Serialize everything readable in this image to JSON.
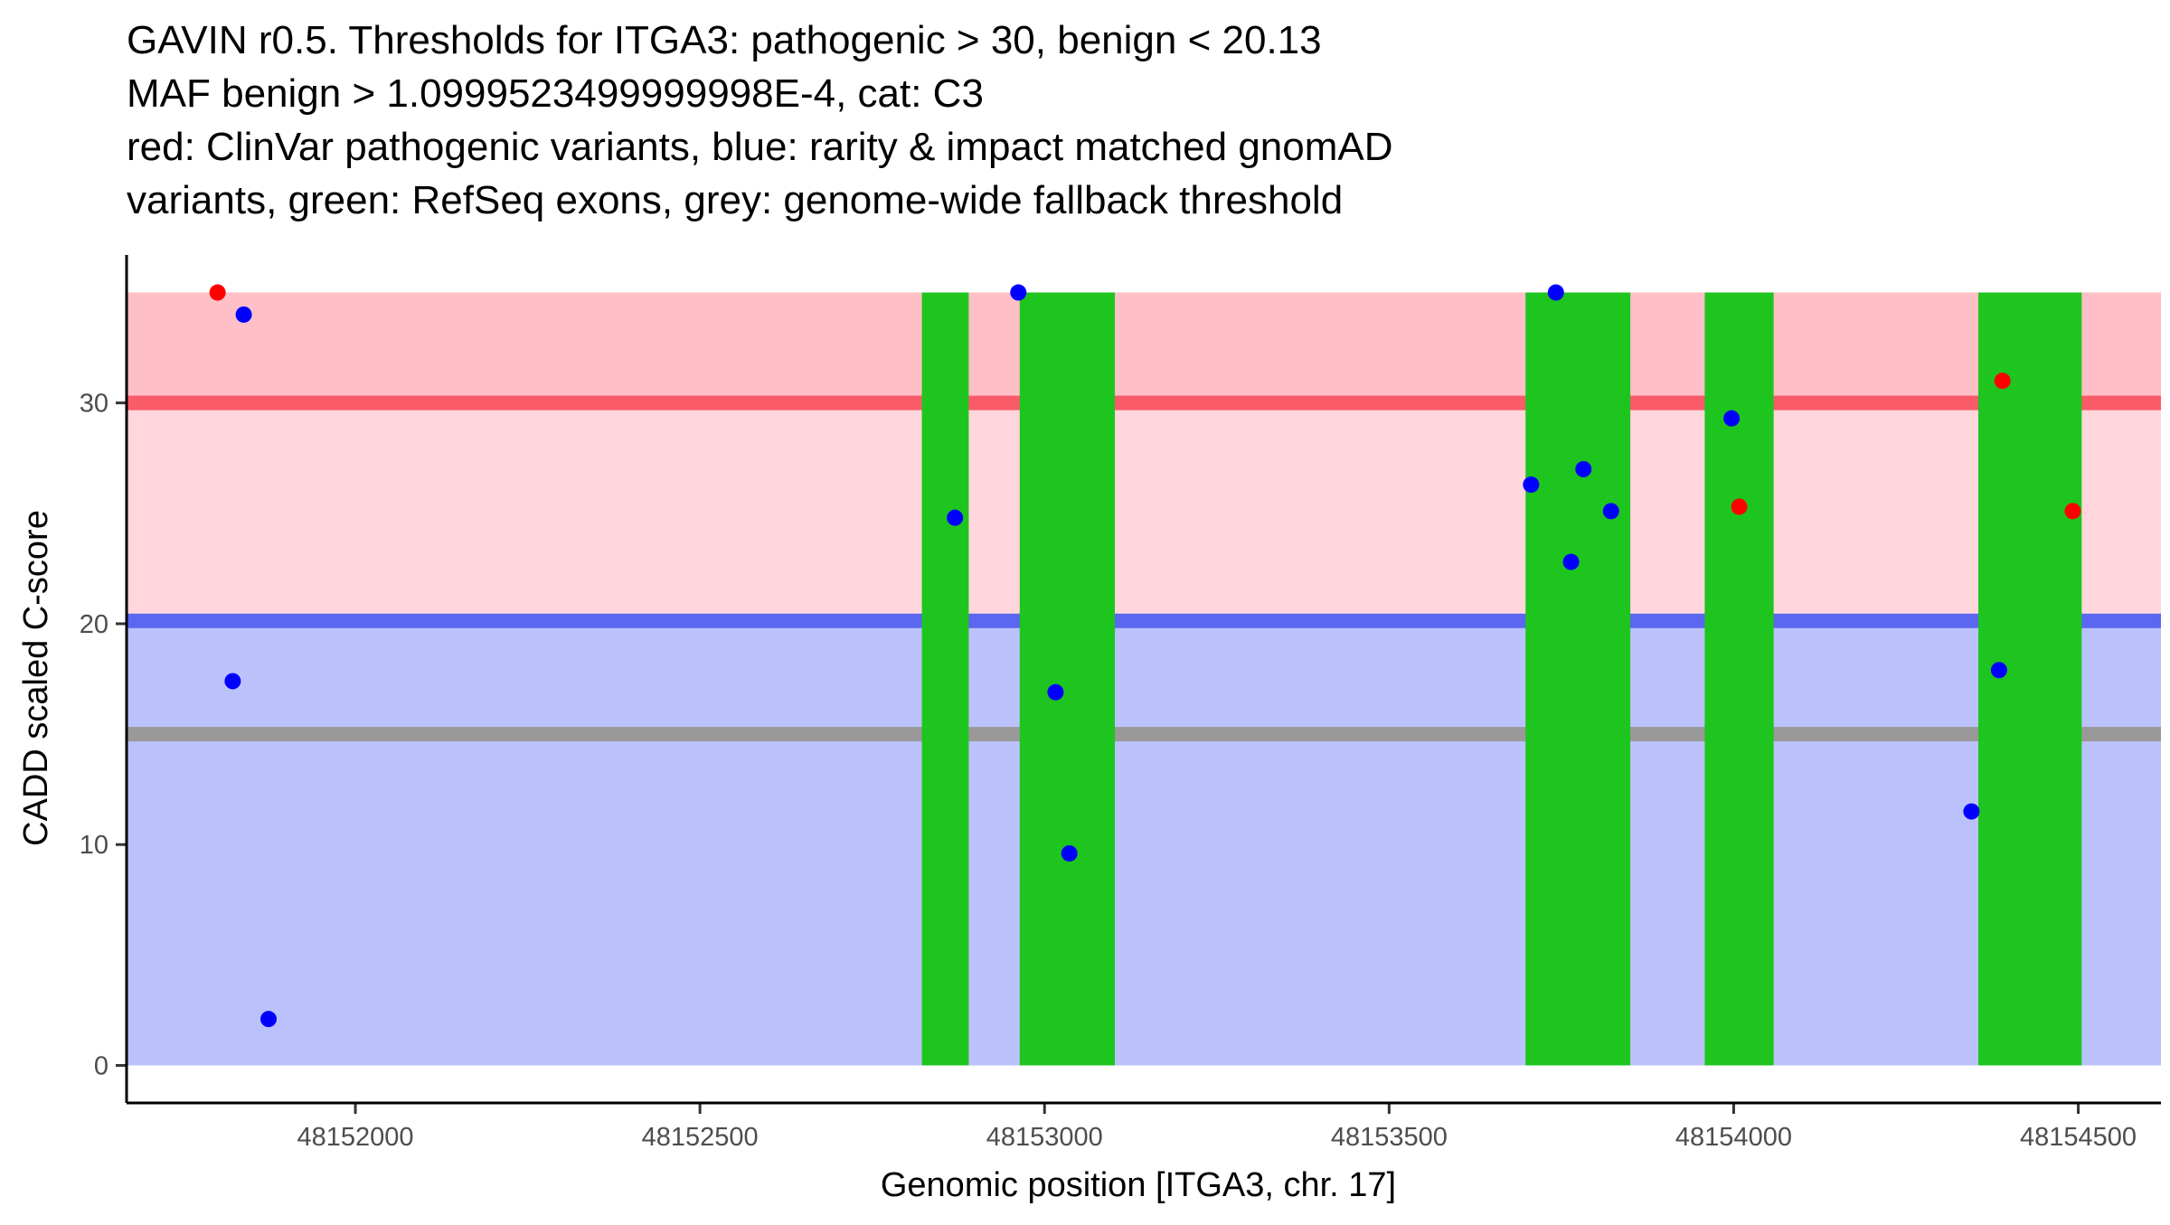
{
  "chart_data": {
    "type": "scatter",
    "title_lines": [
      "GAVIN r0.5. Thresholds for ITGA3: pathogenic > 30, benign < 20.13",
      "MAF benign > 1.0999523499999998E-4, cat: C3",
      "red: ClinVar pathogenic variants, blue: rarity & impact matched gnomAD",
      "variants, green: RefSeq exons, grey: genome-wide fallback threshold"
    ],
    "xlabel": "Genomic position [ITGA3, chr. 17]",
    "ylabel": "CADD scaled C-score",
    "xlim": [
      48151668,
      48154620
    ],
    "ylim": [
      -1.7,
      36.7
    ],
    "x_ticks": [
      48152000,
      48152500,
      48153000,
      48153500,
      48154000,
      48154500
    ],
    "y_ticks": [
      0,
      10,
      20,
      30
    ],
    "grid": false,
    "regions": {
      "pathogenic_band": {
        "from": 20.13,
        "to": 35,
        "color": "#ffd6dc"
      },
      "pathogenic_upper_band": {
        "from": 30,
        "to": 35,
        "color": "#ffbfc6"
      },
      "benign_band": {
        "from": 0,
        "to": 20.13,
        "color": "#bbc2fb"
      }
    },
    "x_range_shaded": [
      48151668,
      48154620
    ],
    "threshold_lines": [
      {
        "name": "pathogenic threshold",
        "value": 30,
        "color": "#f95b68"
      },
      {
        "name": "benign threshold",
        "value": 20.13,
        "color": "#5b67f0"
      },
      {
        "name": "genome-wide fallback threshold",
        "value": 15,
        "color": "#999999"
      }
    ],
    "exons": {
      "color": "#1ec51e",
      "y_range": [
        0,
        35
      ],
      "ranges": [
        [
          48152822,
          48152890
        ],
        [
          48152964,
          48153102
        ],
        [
          48153698,
          48153850
        ],
        [
          48153958,
          48154058
        ],
        [
          48154355,
          48154505
        ]
      ]
    },
    "series": [
      {
        "name": "ClinVar pathogenic variants",
        "color": "#ff0000",
        "points": [
          [
            48151800,
            35.0
          ],
          [
            48154390,
            31.0
          ],
          [
            48154008,
            25.3
          ],
          [
            48154492,
            25.1
          ]
        ]
      },
      {
        "name": "rarity & impact matched gnomAD variants",
        "color": "#0000ff",
        "points": [
          [
            48151838,
            34.0
          ],
          [
            48151822,
            17.4
          ],
          [
            48151874,
            2.1
          ],
          [
            48152870,
            24.8
          ],
          [
            48152962,
            35.0
          ],
          [
            48153016,
            16.9
          ],
          [
            48153036,
            9.6
          ],
          [
            48153742,
            35.0
          ],
          [
            48153706,
            26.3
          ],
          [
            48153782,
            27.0
          ],
          [
            48153764,
            22.8
          ],
          [
            48153822,
            25.1
          ],
          [
            48153997,
            29.3
          ],
          [
            48154385,
            17.9
          ],
          [
            48154345,
            11.5
          ]
        ]
      }
    ]
  }
}
